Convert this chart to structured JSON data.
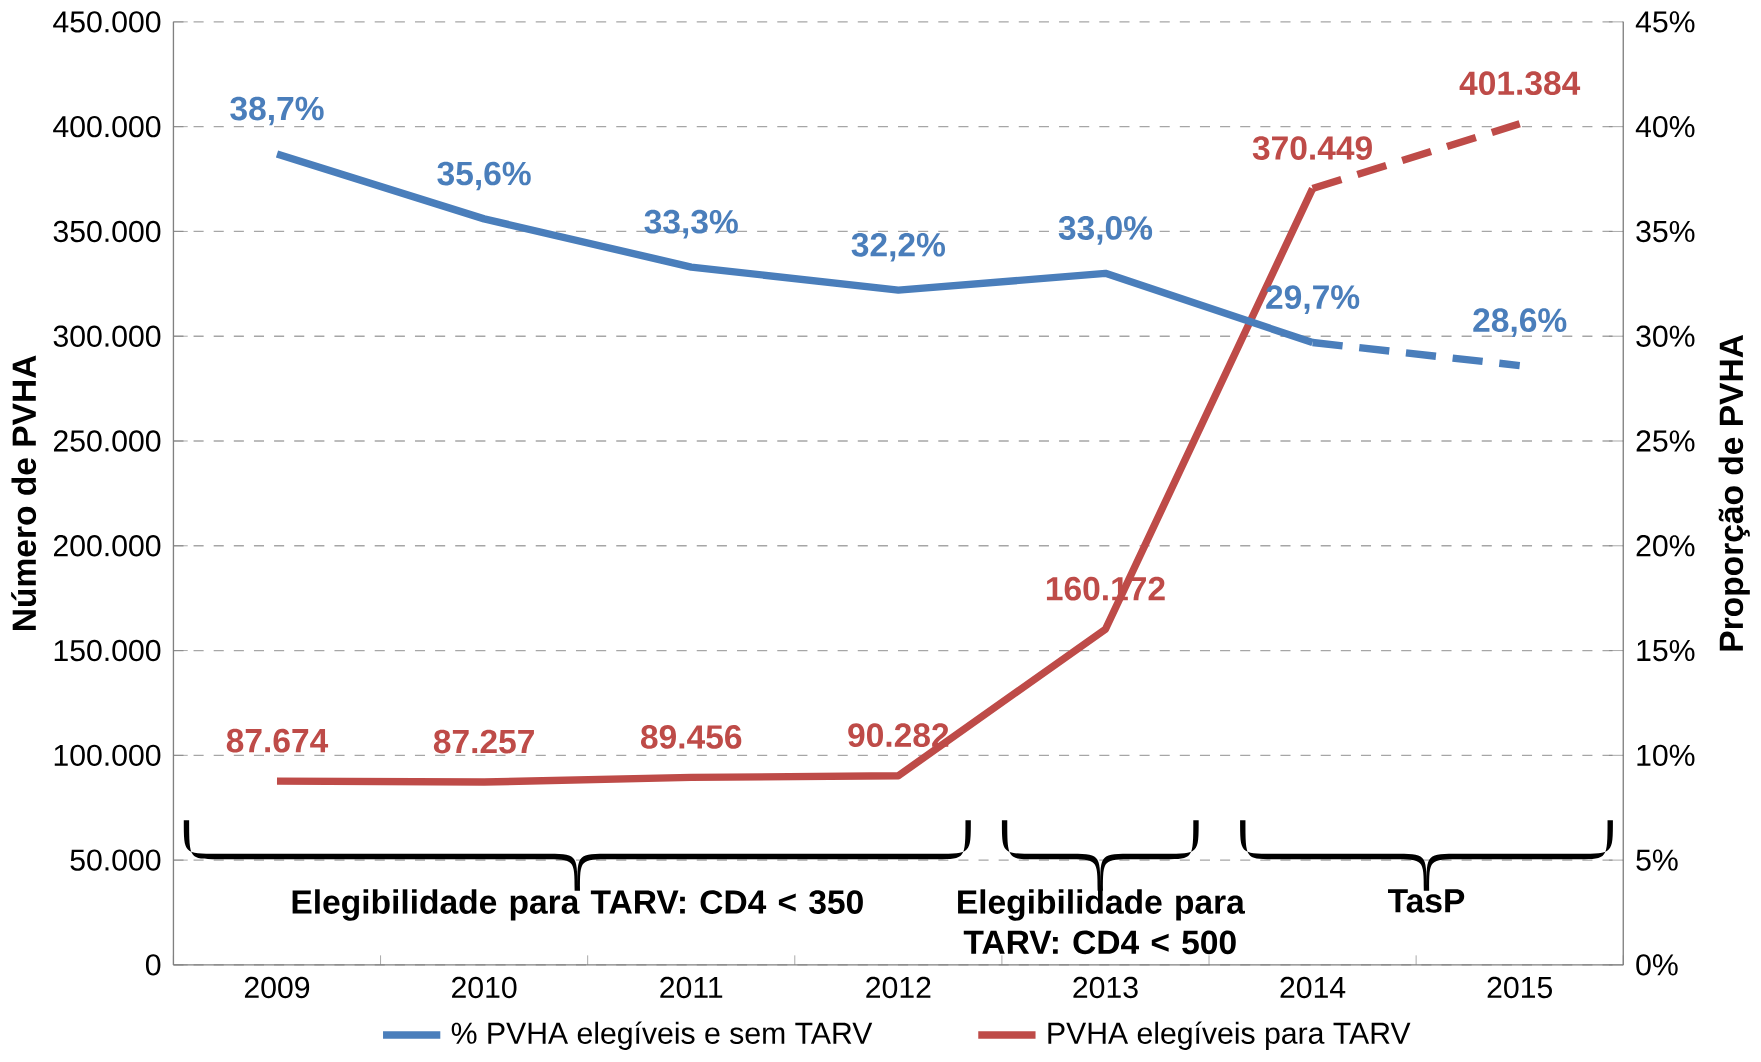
{
  "chart_data": {
    "type": "line",
    "categories": [
      "2009",
      "2010",
      "2011",
      "2012",
      "2013",
      "2014",
      "2015"
    ],
    "ylabel": "Número de PVHA",
    "y2label": "Proporção de PVHA",
    "ylim": [
      0,
      450000
    ],
    "yticks": [
      {
        "value": 0,
        "label": "0"
      },
      {
        "value": 50000,
        "label": "50.000"
      },
      {
        "value": 100000,
        "label": "100.000"
      },
      {
        "value": 150000,
        "label": "150.000"
      },
      {
        "value": 200000,
        "label": "200.000"
      },
      {
        "value": 250000,
        "label": "250.000"
      },
      {
        "value": 300000,
        "label": "300.000"
      },
      {
        "value": 350000,
        "label": "350.000"
      },
      {
        "value": 400000,
        "label": "400.000"
      },
      {
        "value": 450000,
        "label": "450.000"
      }
    ],
    "y2lim": [
      0,
      45
    ],
    "y2ticks": [
      {
        "value": 0,
        "label": "0%"
      },
      {
        "value": 5,
        "label": "5%"
      },
      {
        "value": 10,
        "label": "10%"
      },
      {
        "value": 15,
        "label": "15%"
      },
      {
        "value": 20,
        "label": "20%"
      },
      {
        "value": 25,
        "label": "25%"
      },
      {
        "value": 30,
        "label": "30%"
      },
      {
        "value": 35,
        "label": "35%"
      },
      {
        "value": 40,
        "label": "40%"
      },
      {
        "value": 45,
        "label": "45%"
      }
    ],
    "series": [
      {
        "name": "% PVHA elegíveis e sem TARV",
        "color": "#4a7ebb",
        "axis": "y2",
        "line_style": "solid",
        "values": [
          38.7,
          35.6,
          33.3,
          32.2,
          33.0,
          29.7,
          null
        ],
        "value_labels": [
          "38,7%",
          "35,6%",
          "33,3%",
          "32,2%",
          "33,0%",
          "29,7%",
          null
        ]
      },
      {
        "color": "#4a7ebb",
        "axis": "y2",
        "line_style": "dashed",
        "values": [
          null,
          null,
          null,
          null,
          null,
          29.7,
          28.6
        ],
        "value_labels": [
          null,
          null,
          null,
          null,
          null,
          null,
          "28,6%"
        ]
      },
      {
        "name": "PVHA elegíveis para TARV",
        "color": "#be4b48",
        "axis": "y",
        "line_style": "solid",
        "values": [
          87674,
          87257,
          89456,
          90282,
          160172,
          370449,
          null
        ],
        "value_labels": [
          "87.674",
          "87.257",
          "89.456",
          "90.282",
          "160.172",
          "370.449",
          null
        ]
      },
      {
        "color": "#be4b48",
        "axis": "y",
        "line_style": "dashed",
        "values": [
          null,
          null,
          null,
          null,
          null,
          370449,
          401384
        ],
        "value_labels": [
          null,
          null,
          null,
          null,
          null,
          null,
          "401.384"
        ]
      }
    ],
    "grid": "y",
    "legend": "bottom",
    "marker": "none",
    "annotations": [
      "Elegibilidade para TARV: CD4 < 350",
      "Elegibilidade para TARV: CD4 < 500",
      "TasP"
    ]
  }
}
